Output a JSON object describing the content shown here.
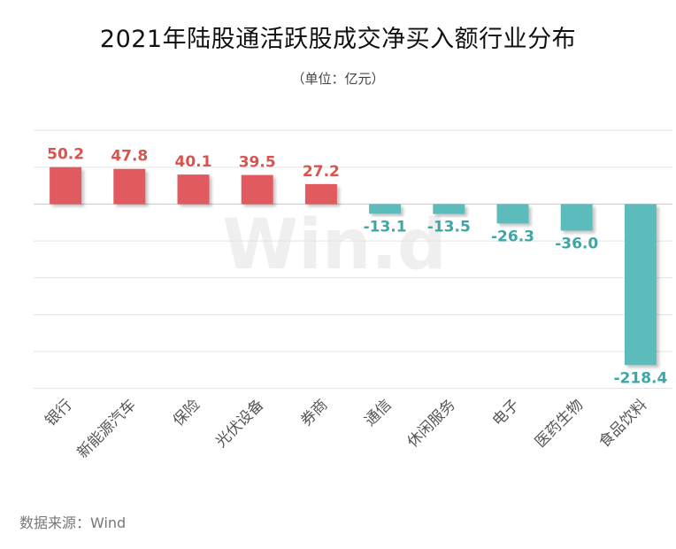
{
  "chart_data": {
    "type": "bar",
    "title": "2021年陆股通活跃股成交净买入额行业分布",
    "subtitle": "（单位：亿元）",
    "categories": [
      "银行",
      "新能源汽车",
      "保险",
      "光伏设备",
      "券商",
      "通信",
      "休闲服务",
      "电子",
      "医药生物",
      "食品饮料"
    ],
    "values": [
      50.2,
      47.8,
      40.1,
      39.5,
      27.2,
      -13.1,
      -13.5,
      -26.3,
      -36.0,
      -218.4
    ],
    "value_labels": [
      "50.2",
      "47.8",
      "40.1",
      "39.5",
      "27.2",
      "-13.1",
      "-13.5",
      "-26.3",
      "-36.0",
      "-218.4"
    ],
    "ylim": [
      -250,
      100
    ],
    "grid": true,
    "legend": "none",
    "colors": {
      "positive": "#e05a5f",
      "negative": "#5bbcbc",
      "positive_label": "#d9534f",
      "negative_label": "#3fa6a6",
      "gridline": "#e3e3e3",
      "zero_line": "#cfcfcf"
    },
    "watermark": "Win.d"
  },
  "source": "数据来源：Wind"
}
